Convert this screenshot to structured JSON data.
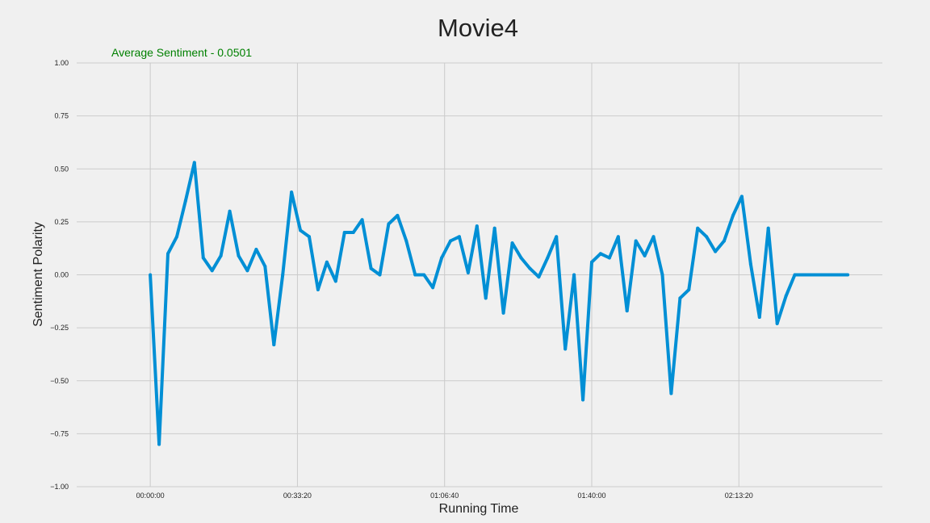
{
  "chart_data": {
    "type": "line",
    "title": "Movie4",
    "subtitle": "Average Sentiment - 0.0501",
    "xlabel": "Running Time",
    "ylabel": "Sentiment Polarity",
    "ylim": [
      -1.0,
      1.0
    ],
    "xlim": [
      -1000,
      9950
    ],
    "grid": true,
    "x_unit": "seconds of running time",
    "yticks": [
      -1.0,
      -0.75,
      -0.5,
      -0.25,
      0.0,
      0.25,
      0.5,
      0.75,
      1.0
    ],
    "ytick_labels": [
      "−1.00",
      "−0.75",
      "−0.50",
      "−0.25",
      "0.00",
      "0.25",
      "0.50",
      "0.75",
      "1.00"
    ],
    "xticks": [
      0,
      2000,
      4000,
      6000,
      8000
    ],
    "xtick_labels": [
      "00:00:00",
      "00:33:20",
      "01:06:40",
      "01:40:00",
      "02:13:20"
    ],
    "series": [
      {
        "color": "#008fd5",
        "x": [
          0,
          120,
          240,
          360,
          480,
          600,
          720,
          840,
          960,
          1080,
          1200,
          1320,
          1440,
          1560,
          1680,
          1800,
          1920,
          2040,
          2160,
          2280,
          2400,
          2520,
          2640,
          2760,
          2880,
          3000,
          3120,
          3240,
          3360,
          3480,
          3600,
          3720,
          3840,
          3960,
          4080,
          4200,
          4320,
          4440,
          4560,
          4680,
          4800,
          4920,
          5040,
          5160,
          5280,
          5400,
          5520,
          5640,
          5760,
          5880,
          6000,
          6120,
          6240,
          6360,
          6480,
          6600,
          6720,
          6840,
          6960,
          7080,
          7200,
          7320,
          7440,
          7560,
          7680,
          7800,
          7920,
          8040,
          8160,
          8280,
          8400,
          8520,
          8640,
          8760,
          8880,
          9000,
          9120,
          9240,
          9360,
          9480
        ],
        "y": [
          0.0,
          -0.8,
          0.1,
          0.18,
          0.35,
          0.53,
          0.08,
          0.02,
          0.09,
          0.3,
          0.09,
          0.02,
          0.12,
          0.04,
          -0.33,
          0.0,
          0.39,
          0.21,
          0.18,
          -0.07,
          0.06,
          -0.03,
          0.2,
          0.2,
          0.26,
          0.03,
          0.0,
          0.24,
          0.28,
          0.16,
          0.0,
          0.0,
          -0.06,
          0.08,
          0.16,
          0.18,
          0.01,
          0.23,
          -0.11,
          0.22,
          -0.18,
          0.15,
          0.08,
          0.03,
          -0.01,
          0.08,
          0.18,
          -0.35,
          0.0,
          -0.59,
          0.06,
          0.1,
          0.08,
          0.18,
          -0.17,
          0.16,
          0.09,
          0.18,
          0.0,
          -0.56,
          -0.11,
          -0.07,
          0.22,
          0.18,
          0.11,
          0.16,
          0.28,
          0.37,
          0.05,
          -0.2,
          0.22,
          -0.23,
          -0.1,
          0.0,
          0.0,
          0.0,
          0.0,
          0.0,
          0.0,
          0.0
        ]
      }
    ],
    "colors": {
      "background": "#f0f0f0",
      "grid": "#cbcbcb",
      "line": "#008fd5",
      "subtitle": "#008000",
      "text": "#222222"
    }
  }
}
